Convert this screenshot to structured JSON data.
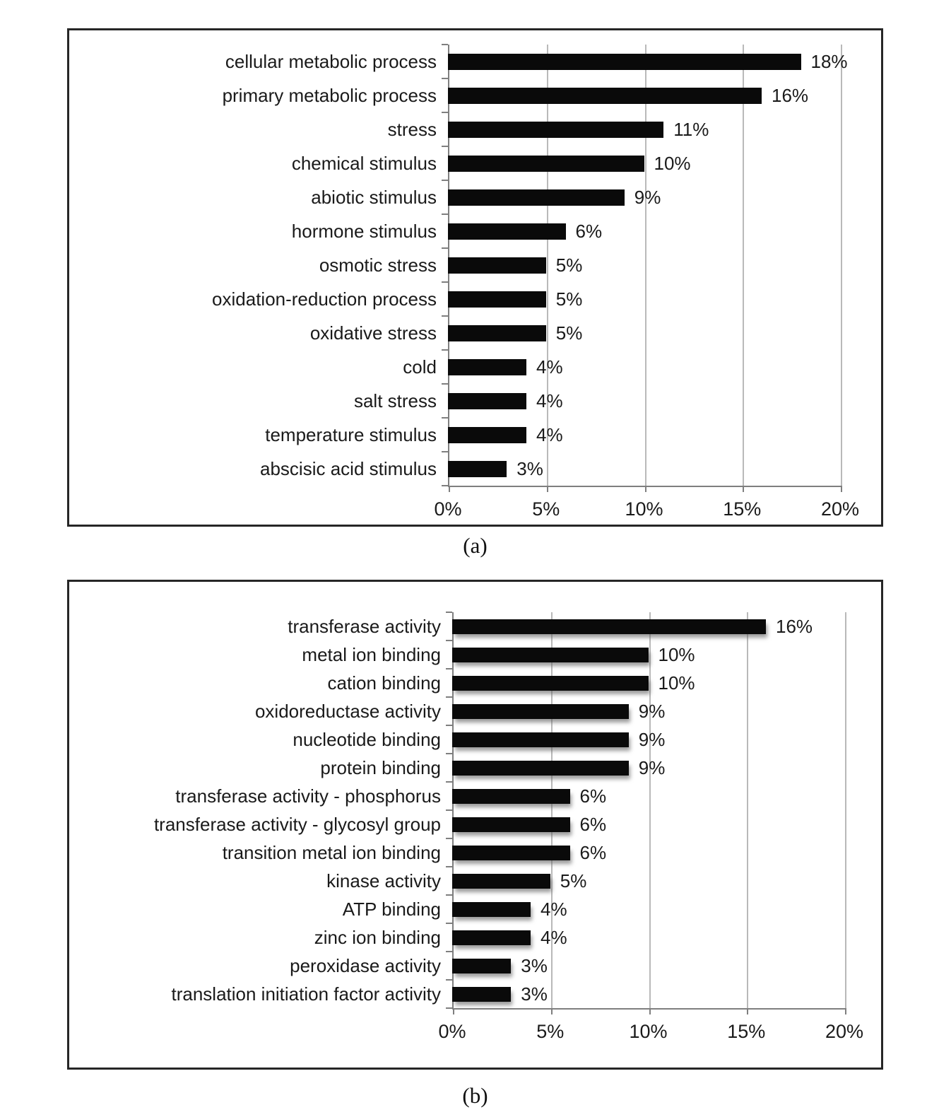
{
  "figure": {
    "background": "#ffffff",
    "captions": {
      "a": "(a)",
      "b": "(b)"
    }
  },
  "colors": {
    "bar": "#0a0a0a",
    "gridline": "#b9b9b9",
    "axis": "#7f7f7f",
    "panel_border": "#262626",
    "text": "#1a1a1a",
    "background": "#ffffff"
  },
  "chart_data": [
    {
      "id": "a",
      "type": "bar",
      "orientation": "horizontal",
      "title": "",
      "xlabel": "",
      "ylabel": "",
      "caption": "(a)",
      "legend": "none",
      "grid": "vertical",
      "xlim": [
        0,
        20
      ],
      "x_tick_labels": [
        "0%",
        "5%",
        "10%",
        "15%",
        "20%"
      ],
      "categories": [
        "cellular metabolic process",
        "primary metabolic process",
        "stress",
        "chemical stimulus",
        "abiotic stimulus",
        "hormone stimulus",
        "osmotic stress",
        "oxidation-reduction process",
        "oxidative stress",
        "cold",
        "salt stress",
        "temperature stimulus",
        "abscisic acid stimulus"
      ],
      "values": [
        18,
        16,
        11,
        10,
        9,
        6,
        5,
        5,
        5,
        4,
        4,
        4,
        3
      ],
      "value_labels": [
        "18%",
        "16%",
        "11%",
        "10%",
        "9%",
        "6%",
        "5%",
        "5%",
        "5%",
        "4%",
        "4%",
        "4%",
        "3%"
      ]
    },
    {
      "id": "b",
      "type": "bar",
      "orientation": "horizontal",
      "title": "",
      "xlabel": "",
      "ylabel": "",
      "caption": "(b)",
      "legend": "none",
      "grid": "vertical",
      "xlim": [
        0,
        20
      ],
      "x_tick_labels": [
        "0%",
        "5%",
        "10%",
        "15%",
        "20%"
      ],
      "categories": [
        "transferase activity",
        "metal ion binding",
        "cation binding",
        "oxidoreductase activity",
        "nucleotide binding",
        "protein binding",
        "transferase activity - phosphorus",
        "transferase activity - glycosyl group",
        "transition metal ion binding",
        "kinase activity",
        "ATP binding",
        "zinc ion binding",
        "peroxidase activity",
        "translation initiation factor activity"
      ],
      "values": [
        16,
        10,
        10,
        9,
        9,
        9,
        6,
        6,
        6,
        5,
        4,
        4,
        3,
        3
      ],
      "value_labels": [
        "16%",
        "10%",
        "10%",
        "9%",
        "9%",
        "9%",
        "6%",
        "6%",
        "6%",
        "5%",
        "4%",
        "4%",
        "3%",
        "3%"
      ]
    }
  ]
}
